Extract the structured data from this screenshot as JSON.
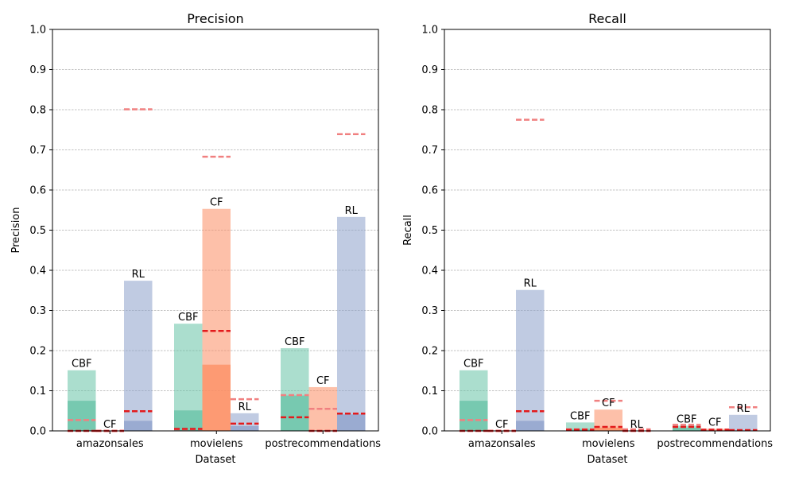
{
  "colors": {
    "CBF": "#66c2a5",
    "CF": "#fc8d62",
    "RL": "#8da0cb",
    "line_dark": "#e31a1c",
    "line_light": "#f08080"
  },
  "chart_data": [
    {
      "type": "bar",
      "title": "Precision",
      "xlabel": "Dataset",
      "ylabel": "Precision",
      "ylim": [
        0,
        1.0
      ],
      "yticks": [
        "0.0",
        "0.1",
        "0.2",
        "0.3",
        "0.4",
        "0.5",
        "0.6",
        "0.7",
        "0.8",
        "0.9",
        "1.0"
      ],
      "grid": true,
      "categories": [
        "amazonsales",
        "movielens",
        "postrecommendations"
      ],
      "series": [
        {
          "name": "CBF",
          "values": [
            0.151,
            0.267,
            0.206
          ],
          "inner_values": [
            0.075,
            0.051,
            0.088
          ],
          "line_dark": [
            0.0,
            0.005,
            0.034
          ],
          "line_light": [
            0.027,
            0.004,
            0.089
          ]
        },
        {
          "name": "CF",
          "values": [
            0.0,
            0.553,
            0.109
          ],
          "inner_values": [
            0.0,
            0.165,
            0.0
          ],
          "line_dark": [
            0.0,
            0.249,
            0.0
          ],
          "line_light": [
            0.0,
            0.683,
            0.055
          ]
        },
        {
          "name": "RL",
          "values": [
            0.374,
            0.044,
            0.533
          ],
          "inner_values": [
            0.025,
            0.012,
            0.041
          ],
          "line_dark": [
            0.049,
            0.018,
            0.043
          ],
          "line_light": [
            0.801,
            0.079,
            0.739
          ]
        }
      ]
    },
    {
      "type": "bar",
      "title": "Recall",
      "xlabel": "Dataset",
      "ylabel": "Recall",
      "ylim": [
        0,
        1.0
      ],
      "yticks": [
        "0.0",
        "0.1",
        "0.2",
        "0.3",
        "0.4",
        "0.5",
        "0.6",
        "0.7",
        "0.8",
        "0.9",
        "1.0"
      ],
      "grid": true,
      "categories": [
        "amazonsales",
        "movielens",
        "postrecommendations"
      ],
      "series": [
        {
          "name": "CBF",
          "values": [
            0.151,
            0.021,
            0.013
          ],
          "inner_values": [
            0.075,
            0.005,
            0.008
          ],
          "line_dark": [
            0.0,
            0.003,
            0.01
          ],
          "line_light": [
            0.027,
            0.004,
            0.015
          ]
        },
        {
          "name": "CF",
          "values": [
            0.0,
            0.053,
            0.005
          ],
          "inner_values": [
            0.0,
            0.008,
            0.0
          ],
          "line_dark": [
            0.0,
            0.01,
            0.003
          ],
          "line_light": [
            0.0,
            0.075,
            0.003
          ]
        },
        {
          "name": "RL",
          "values": [
            0.351,
            0.0,
            0.04
          ],
          "inner_values": [
            0.025,
            0.0,
            0.0
          ],
          "line_dark": [
            0.049,
            0.0,
            0.002
          ],
          "line_light": [
            0.775,
            0.004,
            0.059
          ]
        }
      ]
    }
  ]
}
